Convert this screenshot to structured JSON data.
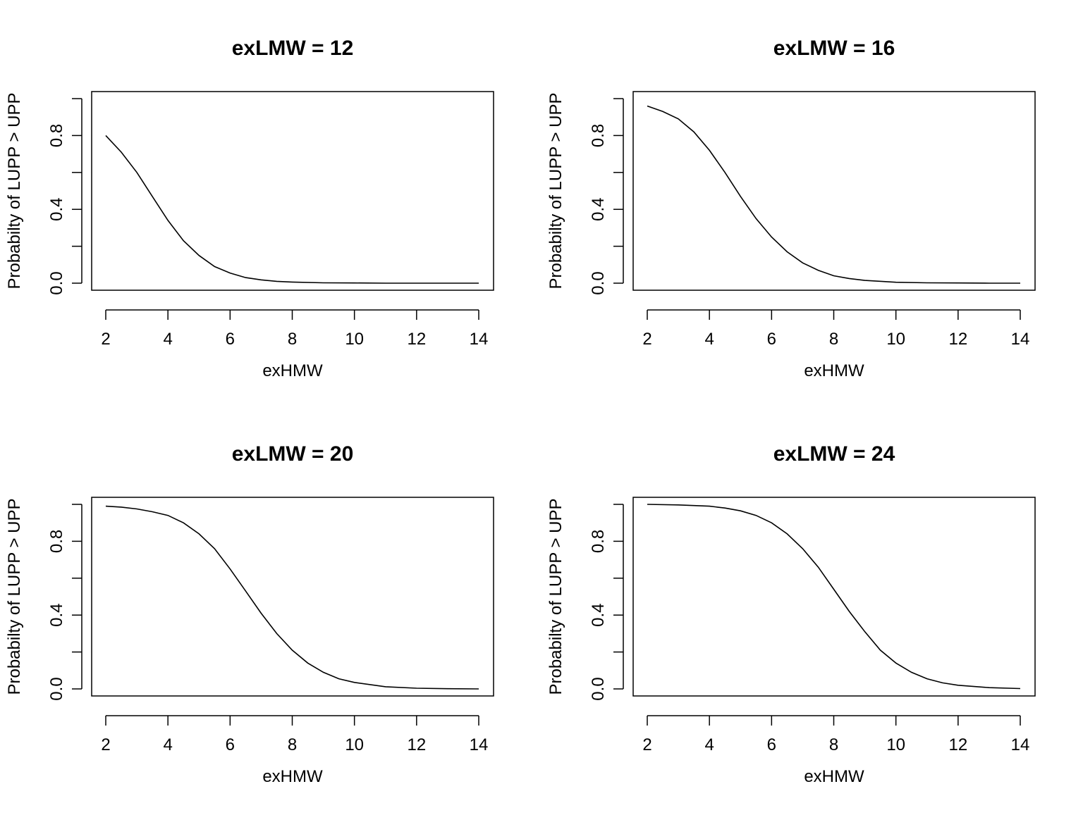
{
  "chart_data": [
    {
      "type": "line",
      "title": "exLMW = 12",
      "xlabel": "exHMW",
      "ylabel": "Probabilty of LUPP > UPP",
      "xlim": [
        2,
        14
      ],
      "ylim": [
        0,
        1
      ],
      "x_ticks": [
        "2",
        "4",
        "6",
        "8",
        "10",
        "12",
        "14"
      ],
      "y_ticks": [
        "0.0",
        "0.4",
        "0.8"
      ],
      "x": [
        2,
        2.5,
        3,
        3.5,
        4,
        4.5,
        5,
        5.5,
        6,
        6.5,
        7,
        7.5,
        8,
        9,
        10,
        11,
        12,
        13,
        14
      ],
      "y": [
        0.8,
        0.71,
        0.6,
        0.47,
        0.34,
        0.23,
        0.15,
        0.09,
        0.055,
        0.03,
        0.018,
        0.01,
        0.006,
        0.002,
        0.001,
        0,
        0,
        0,
        0
      ]
    },
    {
      "type": "line",
      "title": "exLMW = 16",
      "xlabel": "exHMW",
      "ylabel": "Probabilty of LUPP > UPP",
      "xlim": [
        2,
        14
      ],
      "ylim": [
        0,
        1
      ],
      "x_ticks": [
        "2",
        "4",
        "6",
        "8",
        "10",
        "12",
        "14"
      ],
      "y_ticks": [
        "0.0",
        "0.4",
        "0.8"
      ],
      "x": [
        2,
        2.5,
        3,
        3.5,
        4,
        4.5,
        5,
        5.5,
        6,
        6.5,
        7,
        7.5,
        8,
        8.5,
        9,
        10,
        11,
        12,
        13,
        14
      ],
      "y": [
        0.96,
        0.93,
        0.89,
        0.82,
        0.72,
        0.6,
        0.47,
        0.35,
        0.25,
        0.17,
        0.11,
        0.07,
        0.04,
        0.025,
        0.015,
        0.005,
        0.002,
        0.001,
        0,
        0
      ]
    },
    {
      "type": "line",
      "title": "exLMW = 20",
      "xlabel": "exHMW",
      "ylabel": "Probabilty of LUPP > UPP",
      "xlim": [
        2,
        14
      ],
      "ylim": [
        0,
        1
      ],
      "x_ticks": [
        "2",
        "4",
        "6",
        "8",
        "10",
        "12",
        "14"
      ],
      "y_ticks": [
        "0.0",
        "0.4",
        "0.8"
      ],
      "x": [
        2,
        2.5,
        3,
        3.5,
        4,
        4.5,
        5,
        5.5,
        6,
        6.5,
        7,
        7.5,
        8,
        8.5,
        9,
        9.5,
        10,
        11,
        12,
        13,
        14
      ],
      "y": [
        0.99,
        0.985,
        0.975,
        0.96,
        0.94,
        0.9,
        0.84,
        0.76,
        0.65,
        0.53,
        0.41,
        0.3,
        0.21,
        0.14,
        0.09,
        0.055,
        0.035,
        0.012,
        0.004,
        0.001,
        0
      ]
    },
    {
      "type": "line",
      "title": "exLMW = 24",
      "xlabel": "exHMW",
      "ylabel": "Probabilty of LUPP > UPP",
      "xlim": [
        2,
        14
      ],
      "ylim": [
        0,
        1
      ],
      "x_ticks": [
        "2",
        "4",
        "6",
        "8",
        "10",
        "12",
        "14"
      ],
      "y_ticks": [
        "0.0",
        "0.4",
        "0.8"
      ],
      "x": [
        2,
        3,
        4,
        4.5,
        5,
        5.5,
        6,
        6.5,
        7,
        7.5,
        8,
        8.5,
        9,
        9.5,
        10,
        10.5,
        11,
        11.5,
        12,
        13,
        14
      ],
      "y": [
        1.0,
        0.997,
        0.99,
        0.98,
        0.965,
        0.94,
        0.9,
        0.84,
        0.76,
        0.66,
        0.54,
        0.42,
        0.31,
        0.21,
        0.14,
        0.09,
        0.055,
        0.033,
        0.02,
        0.007,
        0.002
      ]
    }
  ]
}
